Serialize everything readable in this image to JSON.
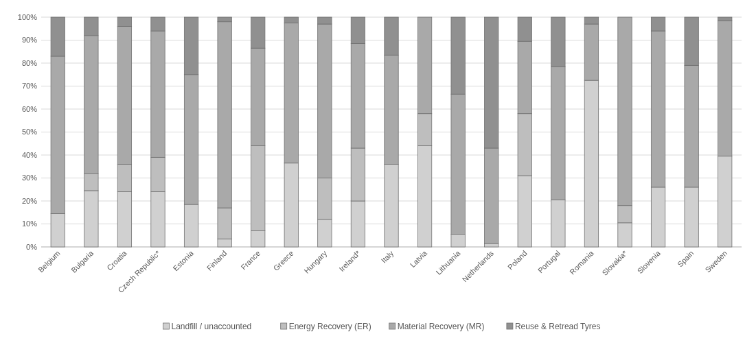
{
  "chart_data": {
    "type": "bar",
    "stacked": true,
    "categories": [
      "Belgium",
      "Bulgaria",
      "Croatia",
      "Czech Republic*",
      "Estonia",
      "Finland",
      "France",
      "Greece",
      "Hungary",
      "Ireland*",
      "Italy",
      "Latvia",
      "Lithuania",
      "Netherlands",
      "Poland",
      "Portugal",
      "Romania",
      "Slovakia*",
      "Slovenia",
      "Spain",
      "Sweden"
    ],
    "series": [
      {
        "name": "Landfill / unaccounted",
        "color": "#d0d0d0",
        "values": [
          14.5,
          24.5,
          24,
          24,
          18.5,
          3.5,
          7,
          36.5,
          12,
          20,
          36,
          44,
          5.5,
          1.5,
          31,
          20.5,
          72.5,
          10.5,
          26,
          26,
          39.5
        ]
      },
      {
        "name": "Energy Recovery (ER)",
        "color": "#bebebe",
        "values": [
          0,
          7.5,
          12,
          15,
          0,
          13.5,
          37,
          0,
          18,
          23,
          0,
          14,
          0,
          0,
          27,
          0,
          0,
          7.5,
          0,
          0,
          0
        ]
      },
      {
        "name": "Material Recovery (MR)",
        "color": "#a9a9a9",
        "values": [
          68.5,
          60,
          60,
          55,
          56.5,
          81,
          42.5,
          61,
          67,
          45.5,
          47.5,
          42,
          61,
          41.5,
          31.5,
          58,
          24.5,
          82,
          68,
          53,
          59
        ]
      },
      {
        "name": "Reuse & Retread Tyres",
        "color": "#909090",
        "values": [
          17,
          8,
          4,
          6,
          25,
          2,
          13.5,
          2.5,
          3,
          11.5,
          16.5,
          0,
          33.5,
          57,
          10.5,
          21.5,
          3,
          0,
          6,
          21,
          1.5
        ]
      }
    ],
    "ylim": [
      0,
      100
    ],
    "yticks": [
      {
        "value": 0,
        "label": "0%"
      },
      {
        "value": 10,
        "label": "10%"
      },
      {
        "value": 20,
        "label": "20%"
      },
      {
        "value": 30,
        "label": "30%"
      },
      {
        "value": 40,
        "label": "40%"
      },
      {
        "value": 50,
        "label": "50%"
      },
      {
        "value": 60,
        "label": "60%"
      },
      {
        "value": 70,
        "label": "70%"
      },
      {
        "value": 80,
        "label": "80%"
      },
      {
        "value": 90,
        "label": "90%"
      },
      {
        "value": 100,
        "label": "100%"
      }
    ],
    "grid": "y",
    "legend": "bottom"
  }
}
